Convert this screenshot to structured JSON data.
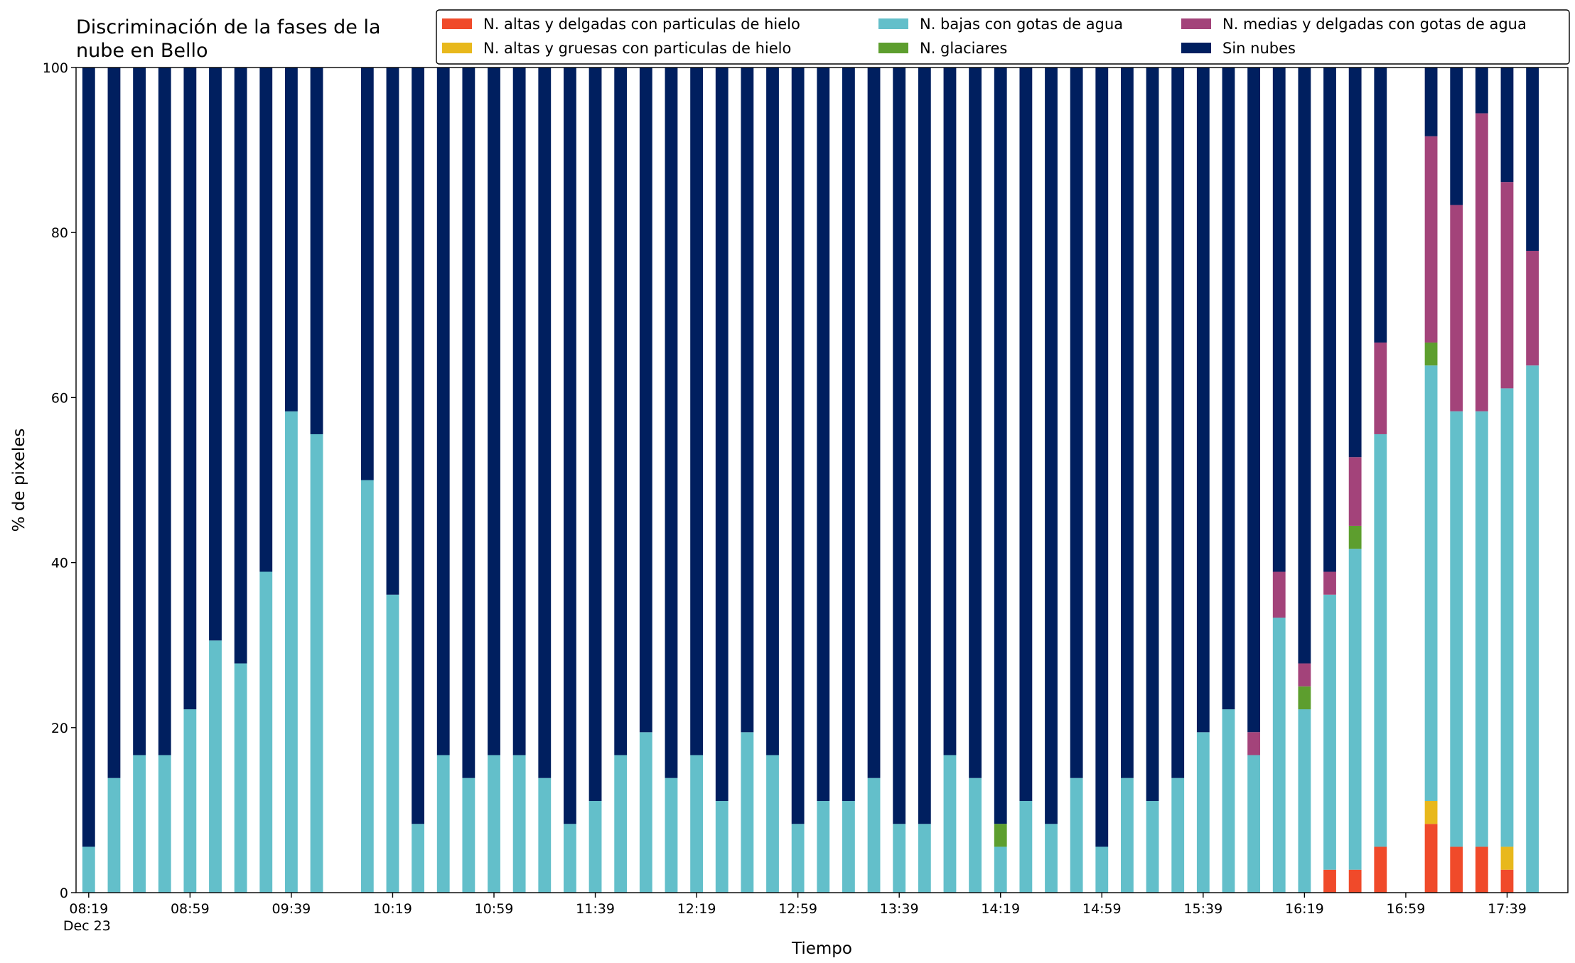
{
  "chart_data": {
    "type": "stacked_bar",
    "title": "Discriminación de la fases de la\nnube en Bello",
    "xlabel": "Tiempo",
    "ylabel": "% de pixeles",
    "date": "Dec 23",
    "x": [
      "08:19",
      "08:29",
      "08:39",
      "08:49",
      "08:59",
      "09:09",
      "09:19",
      "09:29",
      "09:39",
      "09:49",
      "10:09",
      "10:19",
      "10:29",
      "10:39",
      "10:49",
      "10:59",
      "11:09",
      "11:19",
      "11:29",
      "11:39",
      "11:49",
      "11:59",
      "12:09",
      "12:19",
      "12:29",
      "12:39",
      "12:49",
      "12:59",
      "13:09",
      "13:19",
      "13:29",
      "13:39",
      "13:49",
      "13:59",
      "14:09",
      "14:19",
      "14:29",
      "14:39",
      "14:49",
      "14:59",
      "15:09",
      "15:19",
      "15:29",
      "15:39",
      "15:49",
      "15:59",
      "16:09",
      "16:19",
      "16:29",
      "16:39",
      "16:49",
      "17:09",
      "17:19",
      "17:29",
      "17:39",
      "17:49"
    ],
    "xlim": [
      "08:14",
      "18:03"
    ],
    "xticks": [
      "08:19",
      "08:59",
      "09:39",
      "10:19",
      "10:59",
      "11:39",
      "12:19",
      "12:59",
      "13:39",
      "14:19",
      "14:59",
      "15:39",
      "16:19",
      "16:59",
      "17:39"
    ],
    "ylim": [
      0,
      100
    ],
    "yticks": [
      0,
      20,
      40,
      60,
      80,
      100
    ],
    "legend": "top-right",
    "series": [
      {
        "name": "N. altas y delgadas con particulas de hielo",
        "color": "#f04a2a",
        "values": [
          0,
          0,
          0,
          0,
          0,
          0,
          0,
          0,
          0,
          0,
          0,
          0,
          0,
          0,
          0,
          0,
          0,
          0,
          0,
          0,
          0,
          0,
          0,
          0,
          0,
          0,
          0,
          0,
          0,
          0,
          0,
          0,
          0,
          0,
          0,
          0,
          0,
          0,
          0,
          0,
          0,
          0,
          0,
          0,
          0,
          0,
          0,
          0,
          2.78,
          2.78,
          5.56,
          8.33,
          5.56,
          5.56,
          2.78,
          0
        ]
      },
      {
        "name": "N. altas y gruesas con particulas de hielo",
        "color": "#e8b81c",
        "values": [
          0,
          0,
          0,
          0,
          0,
          0,
          0,
          0,
          0,
          0,
          0,
          0,
          0,
          0,
          0,
          0,
          0,
          0,
          0,
          0,
          0,
          0,
          0,
          0,
          0,
          0,
          0,
          0,
          0,
          0,
          0,
          0,
          0,
          0,
          0,
          0,
          0,
          0,
          0,
          0,
          0,
          0,
          0,
          0,
          0,
          0,
          0,
          0,
          0,
          0,
          0,
          2.78,
          0,
          0,
          2.78,
          0
        ]
      },
      {
        "name": "N. bajas con gotas de agua",
        "color": "#63bfca",
        "values": [
          5.56,
          13.89,
          16.67,
          16.67,
          22.22,
          30.56,
          27.78,
          38.89,
          58.33,
          55.56,
          50,
          36.11,
          8.33,
          16.67,
          13.89,
          16.67,
          16.67,
          13.89,
          8.33,
          11.11,
          16.67,
          19.44,
          13.89,
          16.67,
          11.11,
          19.44,
          16.67,
          8.33,
          11.11,
          11.11,
          13.89,
          8.33,
          8.33,
          16.67,
          13.89,
          5.56,
          11.11,
          8.33,
          13.89,
          5.56,
          13.89,
          11.11,
          13.89,
          19.44,
          22.22,
          16.67,
          33.33,
          22.22,
          33.33,
          38.89,
          50,
          52.78,
          52.78,
          52.78,
          55.56,
          63.89
        ]
      },
      {
        "name": "N. glaciares",
        "color": "#5d9e2e",
        "values": [
          0,
          0,
          0,
          0,
          0,
          0,
          0,
          0,
          0,
          0,
          0,
          0,
          0,
          0,
          0,
          0,
          0,
          0,
          0,
          0,
          0,
          0,
          0,
          0,
          0,
          0,
          0,
          0,
          0,
          0,
          0,
          0,
          0,
          0,
          0,
          2.78,
          0,
          0,
          0,
          0,
          0,
          0,
          0,
          0,
          0,
          0,
          0,
          2.78,
          0,
          2.78,
          0,
          2.78,
          0,
          0,
          0,
          0
        ]
      },
      {
        "name": "N. medias y delgadas con gotas de agua",
        "color": "#a3437a",
        "values": [
          0,
          0,
          0,
          0,
          0,
          0,
          0,
          0,
          0,
          0,
          0,
          0,
          0,
          0,
          0,
          0,
          0,
          0,
          0,
          0,
          0,
          0,
          0,
          0,
          0,
          0,
          0,
          0,
          0,
          0,
          0,
          0,
          0,
          0,
          0,
          0,
          0,
          0,
          0,
          0,
          0,
          0,
          0,
          0,
          0,
          2.78,
          5.56,
          2.78,
          2.78,
          8.33,
          11.11,
          25,
          25,
          36.11,
          25,
          13.89
        ]
      },
      {
        "name": "Sin nubes",
        "color": "#001f5f",
        "values": [
          94.44,
          86.11,
          83.33,
          83.33,
          77.78,
          69.44,
          72.22,
          61.11,
          41.67,
          44.44,
          50,
          63.89,
          91.67,
          83.33,
          86.11,
          83.33,
          83.33,
          86.11,
          91.67,
          88.89,
          83.33,
          80.56,
          86.11,
          83.33,
          88.89,
          80.56,
          83.33,
          91.67,
          88.89,
          88.89,
          86.11,
          91.67,
          91.67,
          83.33,
          86.11,
          91.66,
          88.89,
          91.67,
          86.11,
          94.44,
          86.11,
          88.89,
          86.11,
          80.56,
          77.78,
          80.56,
          61.11,
          72.22,
          61.11,
          47.22,
          33.33,
          8.33,
          16.67,
          5.56,
          13.89,
          22.22
        ]
      }
    ]
  }
}
